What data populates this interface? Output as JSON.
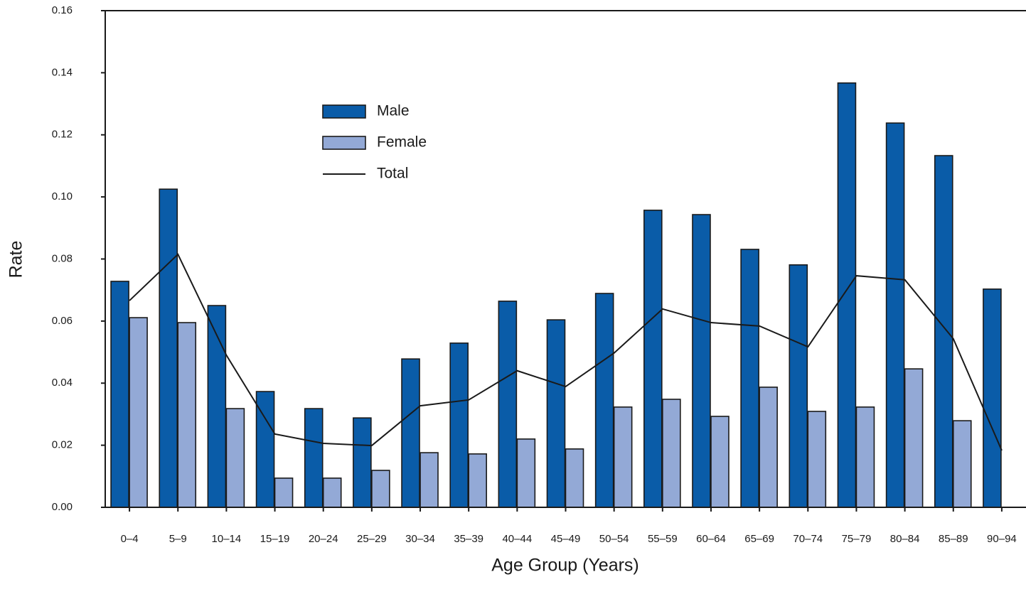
{
  "chart_data": {
    "type": "bar",
    "x_label": "Age Group (Years)",
    "y_label": "Rate",
    "categories": [
      "0–4",
      "5–9",
      "10–14",
      "15–19",
      "20–24",
      "25–29",
      "30–34",
      "35–39",
      "40–44",
      "45–49",
      "50–54",
      "55–59",
      "60–64",
      "65–69",
      "70–74",
      "75–79",
      "80–84",
      "85–89",
      "90–94"
    ],
    "series": [
      {
        "name": "Male",
        "type": "bar",
        "color": "#0a5ca8",
        "values": [
          0.0728,
          0.1025,
          0.065,
          0.0373,
          0.0318,
          0.0288,
          0.0478,
          0.0529,
          0.0664,
          0.0604,
          0.0689,
          0.0957,
          0.0943,
          0.0831,
          0.0781,
          0.1367,
          0.1238,
          0.1133,
          0.0703
        ]
      },
      {
        "name": "Female",
        "type": "bar",
        "color": "#93a9d6",
        "values": [
          0.0611,
          0.0595,
          0.0318,
          0.0094,
          0.0094,
          0.0119,
          0.0176,
          0.0172,
          0.022,
          0.0188,
          0.0323,
          0.0348,
          0.0293,
          0.0387,
          0.0309,
          0.0323,
          0.0446,
          0.0279,
          null
        ]
      },
      {
        "name": "Total",
        "type": "line",
        "color": "#1a1a1a",
        "values": [
          0.0666,
          0.0815,
          0.049,
          0.0236,
          0.0206,
          0.0199,
          0.0327,
          0.0346,
          0.044,
          0.0389,
          0.0497,
          0.0639,
          0.0595,
          0.0584,
          0.0517,
          0.0746,
          0.0733,
          0.0543,
          0.0183
        ]
      }
    ],
    "ylim": [
      0,
      0.16
    ],
    "yticks": [
      {
        "value": 0,
        "label": "0.00"
      },
      {
        "value": 0.02,
        "label": "0.02"
      },
      {
        "value": 0.04,
        "label": "0.04"
      },
      {
        "value": 0.06,
        "label": "0.06"
      },
      {
        "value": 0.08,
        "label": "0.08"
      },
      {
        "value": 0.1,
        "label": "0.10"
      },
      {
        "value": 0.12,
        "label": "0.12"
      },
      {
        "value": 0.14,
        "label": "0.14"
      },
      {
        "value": 0.16,
        "label": "0.16"
      }
    ],
    "grid": false,
    "legend": "upper-left"
  }
}
